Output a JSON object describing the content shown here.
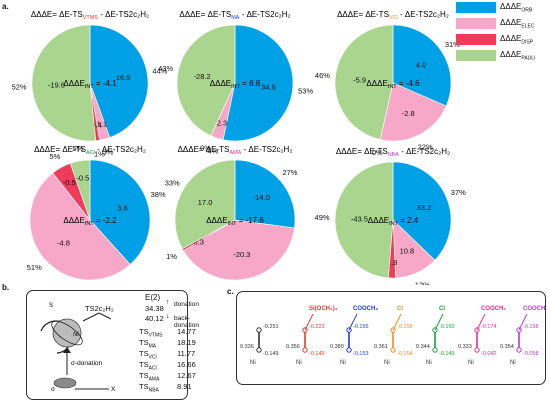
{
  "panel_labels": {
    "a": "a.",
    "b": "b.",
    "c": "c."
  },
  "legend": {
    "items": [
      {
        "text": "ΔΔΔE",
        "sub": "ORB",
        "color": "#00a0e6"
      },
      {
        "text": "ΔΔΔE",
        "sub": "ELEC",
        "color": "#f7a8c8"
      },
      {
        "text": "ΔΔΔE",
        "sub": "DISP",
        "color": "#ee3c5a"
      },
      {
        "text": "ΔΔΔE",
        "sub": "PAULI",
        "color": "#a9d58f"
      }
    ]
  },
  "chart_data": [
    {
      "type": "pie",
      "title_prefix": "ΔΔΔE= ΔE-TS",
      "title_sub": "VTMS",
      "title_sub_color": "#e8382e",
      "title_suffix": " - ΔE-TS2c₂H₂",
      "int_label": "ΔΔΔE",
      "int_sub": "INT",
      "int_value": "= -4.1",
      "slices": [
        {
          "component": "ORB",
          "value": 16.9,
          "label": "16.9",
          "pct": "44%"
        },
        {
          "component": "ELEC",
          "value": -1.1,
          "label": "-1.1",
          "pct": "3%"
        },
        {
          "component": "DISP",
          "value": -0.4,
          "label": "-0.4",
          "pct": "1%"
        },
        {
          "component": "PAULI",
          "value": -19.6,
          "label": "-19.6",
          "pct": "52%"
        }
      ]
    },
    {
      "type": "pie",
      "title_prefix": "ΔΔΔE= ΔE-TS",
      "title_sub": "MA",
      "title_sub_color": "#1f3fd6",
      "title_suffix": " - ΔE-TS2c₂H₂",
      "int_label": "ΔΔΔE",
      "int_sub": "INT",
      "int_value": "= 8.8",
      "slices": [
        {
          "component": "ORB",
          "value": 34.8,
          "label": "34.8",
          "pct": "53%"
        },
        {
          "component": "ELEC",
          "value": 2.3,
          "label": "2.3",
          "pct": "4%"
        },
        {
          "component": "DISP",
          "value": 0.0,
          "label": "",
          "pct": "0%"
        },
        {
          "component": "PAULI",
          "value": -28.2,
          "label": "-28.2",
          "pct": "43%"
        }
      ]
    },
    {
      "type": "pie",
      "title_prefix": "ΔΔΔE= ΔE-TS",
      "title_sub": "VCl",
      "title_sub_color": "#f08a1e",
      "title_suffix": " - ΔE-TS2c₂H₂",
      "int_label": "ΔΔΔE",
      "int_sub": "INT",
      "int_value": "= -4.6",
      "slices": [
        {
          "component": "ORB",
          "value": 4.0,
          "label": "4.0",
          "pct": "31%"
        },
        {
          "component": "ELEC",
          "value": -2.8,
          "label": "-2.8",
          "pct": "22%"
        },
        {
          "component": "DISP",
          "value": 0.0,
          "label": "",
          "pct": "0%"
        },
        {
          "component": "PAULI",
          "value": -5.9,
          "label": "-5.9",
          "pct": "46%"
        }
      ]
    },
    {
      "type": "pie",
      "title_prefix": "ΔΔΔE= ΔE-TS",
      "title_sub": "ACl",
      "title_sub_color": "#17a23c",
      "title_suffix": " - ΔE-TS2c₂H₂",
      "int_label": "ΔΔΔE",
      "int_sub": "INT",
      "int_value": "= -2.2",
      "slices": [
        {
          "component": "ORB",
          "value": 3.6,
          "label": "3.6",
          "pct": "38%"
        },
        {
          "component": "ELEC",
          "value": -4.8,
          "label": "-4.8",
          "pct": "51%"
        },
        {
          "component": "DISP",
          "value": -0.5,
          "label": "-0.5",
          "pct": "5%"
        },
        {
          "component": "PAULI",
          "value": -0.5,
          "label": "-0.5",
          "pct": "5%"
        }
      ]
    },
    {
      "type": "pie",
      "title_prefix": "ΔΔΔE= ΔE-TS",
      "title_sub": "AMA",
      "title_sub_color": "#e6318a",
      "title_suffix": " - ΔE-TS2c₂H₂",
      "int_label": "ΔΔΔE",
      "int_sub": "INT",
      "int_value": "= -17.6",
      "slices": [
        {
          "component": "ORB",
          "value": -14.0,
          "label": "-14.0",
          "pct": "27%"
        },
        {
          "component": "ELEC",
          "value": -20.3,
          "label": "-20.3",
          "pct": "39%"
        },
        {
          "component": "DISP",
          "value": -0.3,
          "label": "-0.3",
          "pct": "1%"
        },
        {
          "component": "PAULI",
          "value": 17.0,
          "label": "17.0",
          "pct": "33%"
        }
      ]
    },
    {
      "type": "pie",
      "title_prefix": "ΔΔΔE= ΔE-TS",
      "title_sub": "NBA",
      "title_sub_color": "#b23dcf",
      "title_suffix": " - ΔE-TS2c₂H₂",
      "int_label": "ΔΔΔE",
      "int_sub": "INT",
      "int_value": "= 2.4",
      "slices": [
        {
          "component": "ORB",
          "value": 33.2,
          "label": "33.2",
          "pct": "37%"
        },
        {
          "component": "ELEC",
          "value": 10.8,
          "label": "10.8",
          "pct": "12%"
        },
        {
          "component": "DISP",
          "value": 1.8,
          "label": "1.8",
          "pct": "2%"
        },
        {
          "component": "PAULI",
          "value": -43.5,
          "label": "-43.5",
          "pct": "49%"
        }
      ]
    }
  ],
  "panel_b": {
    "header": "E(2)",
    "ref_label": "TS2c₂H₂",
    "ref_values": [
      "34.38",
      "40.12"
    ],
    "donation": "donation",
    "back_donation": "back-donation",
    "sigma_donation": "σ-donation",
    "s_label": "S",
    "ni_label": "Ni",
    "sigma_label": "σ",
    "x_label": "X",
    "ts_list": [
      {
        "ts": "TS",
        "sub": "VTMS",
        "value": "14.77",
        "color": "#e8382e"
      },
      {
        "ts": "TS",
        "sub": "MA",
        "value": "18.19",
        "color": "#1f3fd6"
      },
      {
        "ts": "TS",
        "sub": "VCl",
        "value": "11.77",
        "color": "#f08a1e"
      },
      {
        "ts": "TS",
        "sub": "ACl",
        "value": "16.66",
        "color": "#17a23c"
      },
      {
        "ts": "TS",
        "sub": "AMA",
        "value": "12.67",
        "color": "#e6318a"
      },
      {
        "ts": "TS",
        "sub": "NBA",
        "value": "8.91",
        "color": "#b23dcf"
      }
    ]
  },
  "panel_c": {
    "molecules": [
      {
        "substituent": "",
        "color": "#333333",
        "values": [
          "-0.251",
          "0.336",
          "-0.149"
        ]
      },
      {
        "substituent": "Si(OCH₃)₃",
        "color": "#e8382e",
        "values": [
          "-0.223",
          "0.356",
          "-0.149"
        ]
      },
      {
        "substituent": "COOCH₃",
        "color": "#1f3fd6",
        "values": [
          "-0.156",
          "0.380",
          "-0.153"
        ]
      },
      {
        "substituent": "Cl",
        "color": "#f08a1e",
        "values": [
          "-0.159",
          "0.361",
          "-0.154"
        ]
      },
      {
        "substituent": "Cl",
        "color": "#17a23c",
        "values": [
          "-0.160",
          "0.344",
          "-0.149"
        ]
      },
      {
        "substituent": "COOCH₃",
        "color": "#e6318a",
        "values": [
          "-0.174",
          "0.333",
          "-0.042"
        ]
      },
      {
        "substituent": "COOCH₃",
        "color": "#b23dcf",
        "values": [
          "-0.158",
          "0.354",
          "-0.058"
        ]
      }
    ],
    "ni_label": "Ni"
  }
}
